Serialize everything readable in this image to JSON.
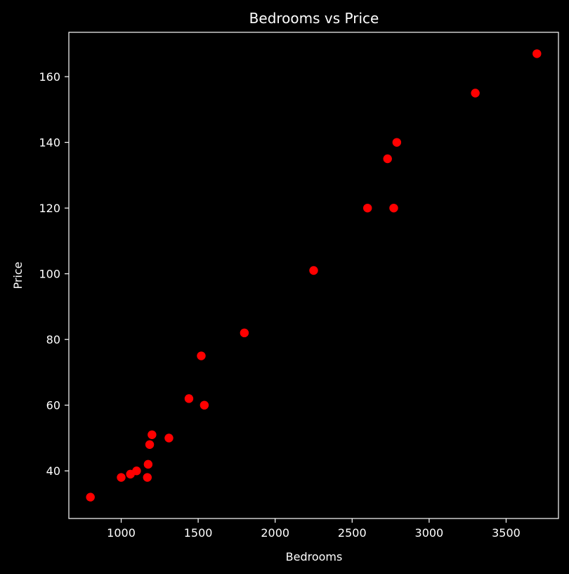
{
  "chart_data": {
    "type": "scatter",
    "title": "Bedrooms vs Price",
    "xlabel": "Bedrooms",
    "ylabel": "Price",
    "xlim": [
      660,
      3840
    ],
    "ylim": [
      25.5,
      173.5
    ],
    "xticks": [
      1000,
      1500,
      2000,
      2500,
      3000,
      3500
    ],
    "yticks": [
      40,
      60,
      80,
      100,
      120,
      140,
      160
    ],
    "grid": false,
    "background_color": "#000000",
    "axis_color": "#ffffff",
    "point_color": "#ff0000",
    "points": [
      {
        "x": 800,
        "y": 32
      },
      {
        "x": 1000,
        "y": 38
      },
      {
        "x": 1060,
        "y": 39
      },
      {
        "x": 1100,
        "y": 40
      },
      {
        "x": 1170,
        "y": 38
      },
      {
        "x": 1175,
        "y": 42
      },
      {
        "x": 1185,
        "y": 48
      },
      {
        "x": 1200,
        "y": 51
      },
      {
        "x": 1310,
        "y": 50
      },
      {
        "x": 1440,
        "y": 62
      },
      {
        "x": 1520,
        "y": 75
      },
      {
        "x": 1540,
        "y": 60
      },
      {
        "x": 1800,
        "y": 82
      },
      {
        "x": 2250,
        "y": 101
      },
      {
        "x": 2600,
        "y": 120
      },
      {
        "x": 2730,
        "y": 135
      },
      {
        "x": 2770,
        "y": 120
      },
      {
        "x": 2790,
        "y": 140
      },
      {
        "x": 3300,
        "y": 155
      },
      {
        "x": 3700,
        "y": 167
      }
    ]
  }
}
